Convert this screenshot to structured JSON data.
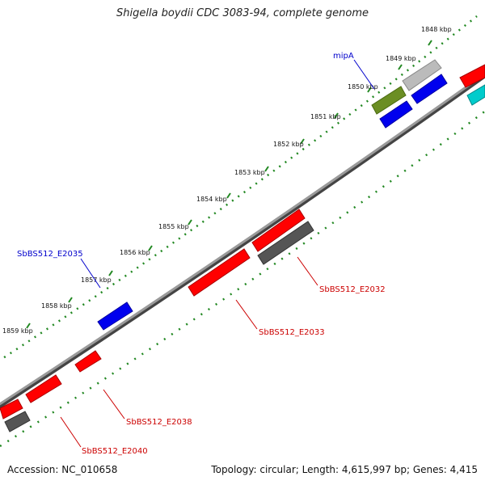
{
  "title": "Shigella boydii CDC 3083-94, complete genome",
  "footer": {
    "accession": "Accession: NC_010658",
    "summary": "Topology: circular; Length: 4,615,997 bp; Genes: 4,415"
  },
  "kbp_labels": [
    "1848 kbp",
    "1849 kbp",
    "1850 kbp",
    "1851 kbp",
    "1852 kbp",
    "1853 kbp",
    "1854 kbp",
    "1855 kbp",
    "1856 kbp",
    "1857 kbp",
    "1858 kbp",
    "1859 kbp"
  ],
  "gene_labels": {
    "mipA": "mipA",
    "e2035": "SbBS512_E2035",
    "e2032": "SbBS512_E2032",
    "e2033": "SbBS512_E2033",
    "e2038": "SbBS512_E2038",
    "e2040": "SbBS512_E2040"
  },
  "colors": {
    "backbone": "#808080",
    "tick": "#228822",
    "red": "#ff0000",
    "blue": "#0000ee",
    "olive": "#6b8e23",
    "gray": "#555555",
    "light-gray": "#bbbbbb",
    "cyan": "#00cccc"
  }
}
